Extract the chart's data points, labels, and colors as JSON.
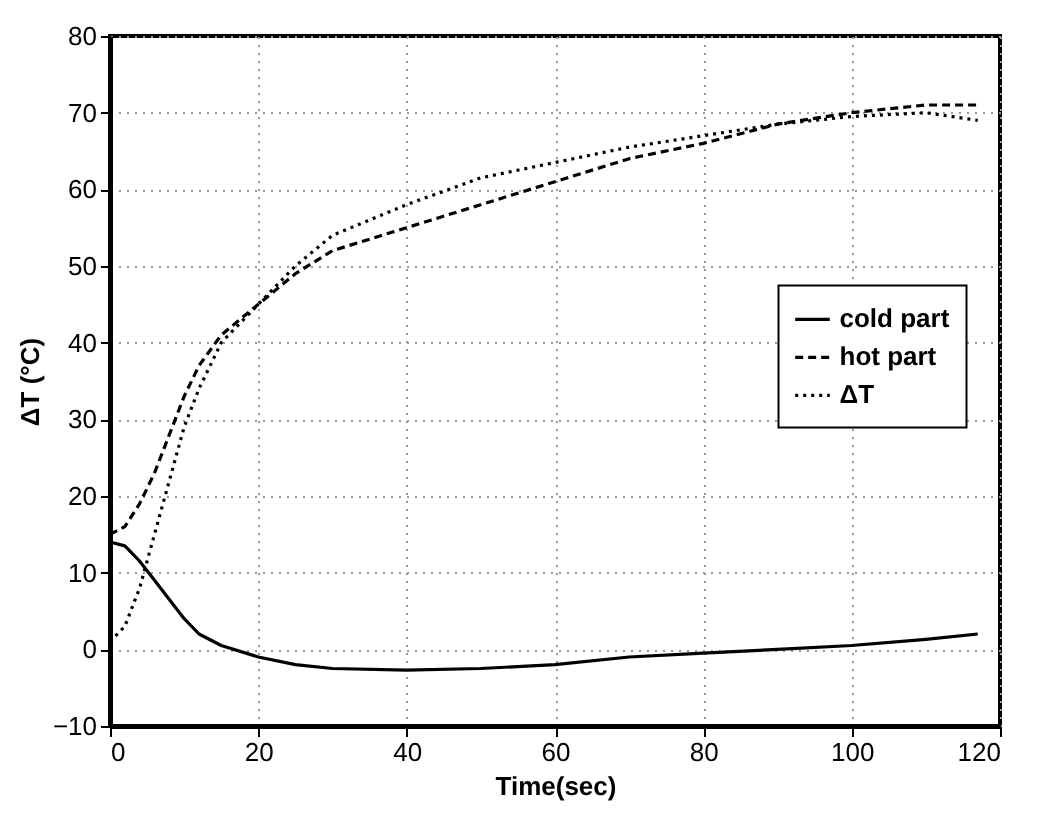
{
  "chart_data": {
    "type": "line",
    "xlabel": "Time(sec)",
    "ylabel": "ΔT (°C)",
    "x": [
      0,
      2,
      4,
      6,
      8,
      10,
      12,
      15,
      20,
      25,
      30,
      40,
      50,
      60,
      70,
      80,
      90,
      100,
      110,
      117
    ],
    "series": [
      {
        "name": "cold part",
        "color": "#000000",
        "line_style": "solid",
        "values": [
          14,
          13.5,
          11.5,
          9,
          6.5,
          4,
          2,
          0.5,
          -1,
          -2,
          -2.5,
          -2.7,
          -2.5,
          -2,
          -1,
          -0.5,
          0,
          0.5,
          1.3,
          2
        ]
      },
      {
        "name": "hot part",
        "color": "#000000",
        "line_style": "dashed",
        "values": [
          15,
          16,
          19,
          23,
          28,
          33,
          37,
          41,
          45,
          49,
          52,
          55,
          58,
          61,
          64,
          66,
          68.5,
          70,
          71,
          71
        ]
      },
      {
        "name": "ΔT",
        "color": "#000000",
        "line_style": "dotted",
        "values": [
          1,
          3,
          8,
          15,
          22,
          29,
          34,
          40,
          45,
          50,
          54,
          58,
          61.5,
          63.5,
          65.5,
          67,
          68.5,
          69.5,
          70,
          69
        ]
      }
    ],
    "xlim": [
      0,
      120
    ],
    "xticks": [
      0,
      20,
      40,
      60,
      80,
      100,
      120
    ],
    "ylim": [
      -10,
      80
    ],
    "yticks": [
      -10,
      0,
      10,
      20,
      30,
      40,
      50,
      60,
      70,
      80
    ],
    "grid": true,
    "legend": "right"
  }
}
